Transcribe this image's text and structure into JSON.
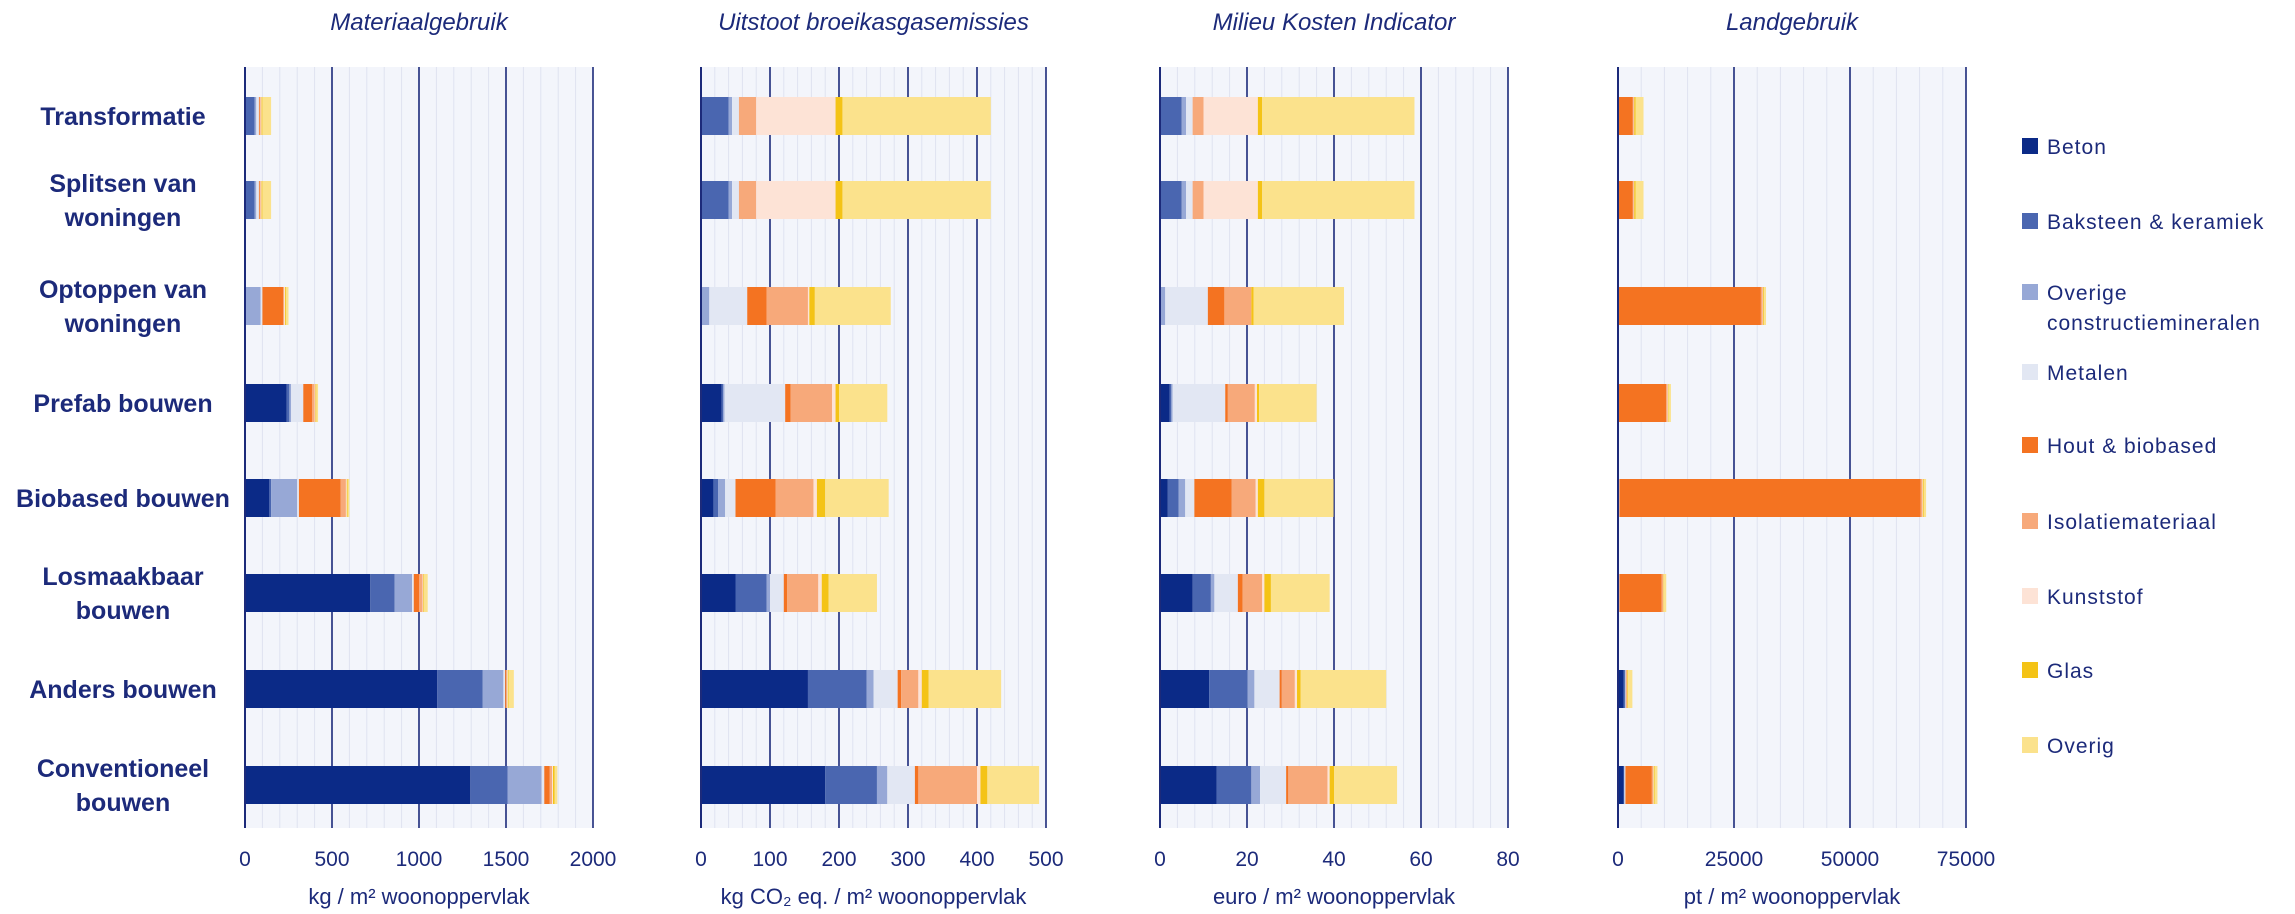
{
  "categories": [
    [
      "Transformatie"
    ],
    [
      "Splitsen van",
      "woningen"
    ],
    [
      "Optoppen van",
      "woningen"
    ],
    [
      "Prefab bouwen"
    ],
    [
      "Biobased bouwen"
    ],
    [
      "Losmaakbaar",
      "bouwen"
    ],
    [
      "Anders bouwen"
    ],
    [
      "Conventioneel",
      "bouwen"
    ]
  ],
  "materials": [
    {
      "name": "Beton",
      "color": "#0b2a87"
    },
    {
      "name": "Baksteen & keramiek",
      "color": "#4a66b0"
    },
    {
      "name": "Overige constructiemineralen",
      "lines": [
        "Overige",
        "constructiemineralen"
      ],
      "color": "#97a8d6"
    },
    {
      "name": "Metalen",
      "color": "#e2e7f3"
    },
    {
      "name": "Hout & biobased",
      "color": "#f47321"
    },
    {
      "name": "Isolatiemateriaal",
      "color": "#f7a97a"
    },
    {
      "name": "Kunststof",
      "color": "#fde3d6"
    },
    {
      "name": "Glas",
      "color": "#f4c316"
    },
    {
      "name": "Overig",
      "color": "#fbe28c"
    }
  ],
  "chart_data": [
    {
      "type": "bar",
      "stacked": true,
      "orientation": "horizontal",
      "title": "Materiaalgebruik",
      "xlabel": "kg / m² woonoppervlak",
      "xlim": [
        0,
        2000
      ],
      "ticks": [
        0,
        500,
        1000,
        1500,
        2000
      ],
      "tick_labels": [
        "0",
        "500",
        "1000",
        "1500",
        "2000"
      ],
      "rows": [
        [
          0,
          55,
          10,
          15,
          5,
          5,
          5,
          5,
          50
        ],
        [
          0,
          55,
          10,
          15,
          5,
          5,
          5,
          5,
          50
        ],
        [
          0,
          0,
          90,
          10,
          120,
          5,
          5,
          5,
          15
        ],
        [
          240,
          15,
          10,
          70,
          50,
          15,
          5,
          5,
          10
        ],
        [
          140,
          10,
          150,
          10,
          240,
          30,
          5,
          5,
          10
        ],
        [
          720,
          140,
          100,
          10,
          30,
          20,
          5,
          5,
          20
        ],
        [
          1105,
          260,
          120,
          10,
          5,
          5,
          5,
          5,
          30
        ],
        [
          1295,
          215,
          195,
          15,
          30,
          15,
          5,
          10,
          15
        ]
      ],
      "grid": true
    },
    {
      "type": "bar",
      "stacked": true,
      "orientation": "horizontal",
      "title": "Uitstoot broeikasgasemissies",
      "xlabel": "kg CO₂ eq. / m² woonoppervlak",
      "xlim": [
        0,
        500
      ],
      "ticks": [
        0,
        100,
        200,
        300,
        400,
        500
      ],
      "tick_labels": [
        "0",
        "100",
        "200",
        "300",
        "400",
        "500"
      ],
      "rows": [
        [
          0,
          40,
          5,
          10,
          0,
          25,
          115,
          10,
          215
        ],
        [
          0,
          40,
          5,
          10,
          0,
          25,
          115,
          10,
          215
        ],
        [
          0,
          0,
          12,
          55,
          28,
          60,
          2,
          8,
          110
        ],
        [
          30,
          2,
          2,
          88,
          8,
          60,
          5,
          5,
          70
        ],
        [
          18,
          7,
          10,
          15,
          58,
          55,
          5,
          12,
          92
        ],
        [
          50,
          45,
          5,
          20,
          5,
          45,
          5,
          10,
          70
        ],
        [
          155,
          85,
          10,
          35,
          5,
          25,
          5,
          10,
          105
        ],
        [
          180,
          75,
          15,
          40,
          5,
          85,
          5,
          10,
          75
        ]
      ],
      "grid": true
    },
    {
      "type": "bar",
      "stacked": true,
      "orientation": "horizontal",
      "title": "Milieu Kosten Indicator",
      "xlabel": "euro / m² woonoppervlak",
      "xlim": [
        0,
        80
      ],
      "ticks": [
        0,
        20,
        40,
        60,
        80
      ],
      "tick_labels": [
        "0",
        "20",
        "40",
        "60",
        "80"
      ],
      "rows": [
        [
          0,
          5,
          1,
          1.5,
          0,
          2.5,
          12.5,
          1,
          35
        ],
        [
          0,
          5,
          1,
          1.5,
          0,
          2.5,
          12.5,
          1,
          35
        ],
        [
          0,
          0,
          1.2,
          9.8,
          3.8,
          6.2,
          0,
          0.5,
          20.8
        ],
        [
          2.2,
          0.4,
          0.3,
          12.1,
          0.6,
          6.2,
          0.5,
          0.5,
          13.2
        ],
        [
          1.8,
          2.5,
          1.5,
          2.1,
          8.6,
          5.5,
          0.5,
          1.5,
          15.9
        ],
        [
          7.5,
          4.2,
          0.8,
          5.4,
          1.1,
          4.5,
          0.5,
          1.5,
          13.5
        ],
        [
          11.3,
          8.8,
          1.6,
          5.8,
          0.5,
          3,
          0.5,
          0.8,
          19.7
        ],
        [
          13,
          8,
          2,
          6,
          0.5,
          9,
          0.5,
          1,
          14.5
        ]
      ],
      "grid": true
    },
    {
      "type": "bar",
      "stacked": true,
      "orientation": "horizontal",
      "title": "Landgebruik",
      "xlabel": "pt / m² woonoppervlak",
      "xlim": [
        0,
        75000
      ],
      "ticks": [
        0,
        25000,
        50000,
        75000
      ],
      "tick_labels": [
        "0",
        "25000",
        "50000",
        "75000"
      ],
      "rows": [
        [
          0,
          0,
          0,
          0,
          3200,
          200,
          100,
          300,
          1700
        ],
        [
          0,
          0,
          0,
          0,
          3200,
          200,
          100,
          300,
          1700
        ],
        [
          0,
          0,
          0,
          0,
          30800,
          400,
          100,
          200,
          400
        ],
        [
          0,
          0,
          0,
          200,
          10200,
          300,
          100,
          100,
          500
        ],
        [
          0,
          0,
          0,
          300,
          64900,
          400,
          100,
          200,
          500
        ],
        [
          0,
          0,
          0,
          300,
          9100,
          300,
          100,
          100,
          500
        ],
        [
          1200,
          300,
          100,
          100,
          100,
          100,
          100,
          200,
          900
        ],
        [
          1200,
          100,
          100,
          200,
          5700,
          300,
          100,
          200,
          600
        ]
      ],
      "grid": true
    }
  ]
}
